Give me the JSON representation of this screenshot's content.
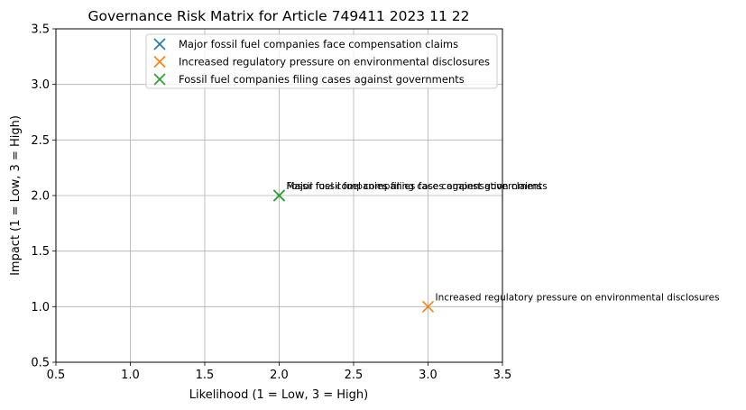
{
  "chart_data": {
    "type": "scatter",
    "title": "Governance Risk Matrix for Article 749411 2023 11 22",
    "xlabel": "Likelihood (1 = Low, 3 = High)",
    "ylabel": "Impact (1 = Low, 3 = High)",
    "xlim": [
      0.5,
      3.5
    ],
    "ylim": [
      0.5,
      3.5
    ],
    "xticks": [
      "0.5",
      "1.0",
      "1.5",
      "2.0",
      "2.5",
      "3.0",
      "3.5"
    ],
    "yticks": [
      "0.5",
      "1.0",
      "1.5",
      "2.0",
      "2.5",
      "3.0",
      "3.5"
    ],
    "grid": true,
    "legend_position": "top-right",
    "marker": "x",
    "series": [
      {
        "name": "Major fossil fuel companies face compensation claims",
        "color": "#1f77b4",
        "points": [
          {
            "x": 2,
            "y": 2
          }
        ]
      },
      {
        "name": "Increased regulatory pressure on environmental disclosures",
        "color": "#ff7f0e",
        "points": [
          {
            "x": 3,
            "y": 1
          }
        ]
      },
      {
        "name": "Fossil fuel companies filing cases against governments",
        "color": "#2ca02c",
        "points": [
          {
            "x": 2,
            "y": 2
          }
        ]
      }
    ]
  }
}
